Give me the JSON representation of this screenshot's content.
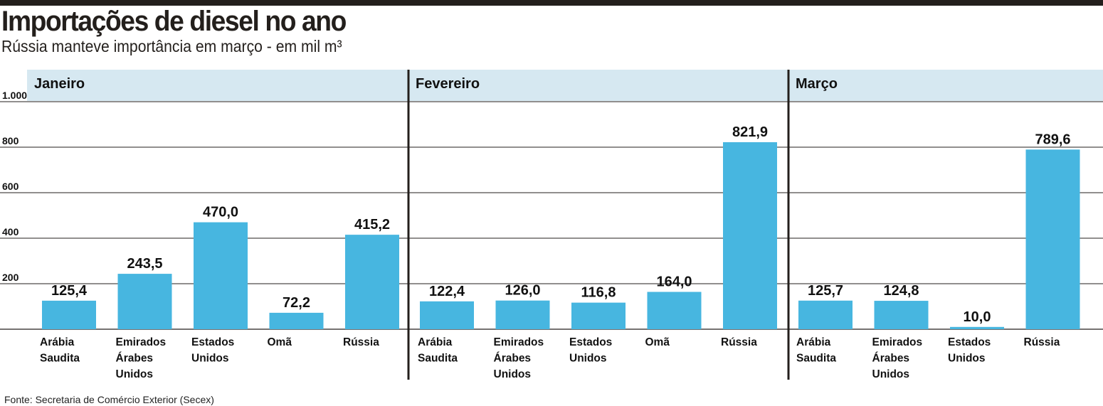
{
  "header": {
    "title": "Importações de diesel no ano",
    "subtitle": "Rússia manteve importância em março - em mil m³"
  },
  "footer": {
    "source": "Fonte: Secretaria de Comércio Exterior (Secex)"
  },
  "colors": {
    "bar": "#47b6e0",
    "panel_header": "#d6e8f1",
    "grid": "#231f1c",
    "topbar": "#231f1c"
  },
  "chart_data": {
    "type": "bar",
    "title": "Importações de diesel no ano",
    "subtitle": "Rússia manteve importância em março - em mil m³",
    "ylim": [
      0,
      1000
    ],
    "yticks": [
      200,
      400,
      600,
      800,
      1000
    ],
    "ytick_labels": [
      "200",
      "400",
      "600",
      "800",
      "1.000"
    ],
    "grid": true,
    "panels": [
      {
        "name": "Janeiro",
        "categories": [
          "Arábia Saudita",
          "Emirados Árabes Unidos",
          "Estados Unidos",
          "Omã",
          "Rússia"
        ],
        "category_lines": [
          [
            "Arábia",
            "Saudita"
          ],
          [
            "Emirados",
            "Árabes",
            "Unidos"
          ],
          [
            "Estados",
            "Unidos"
          ],
          [
            "Omã"
          ],
          [
            "Rússia"
          ]
        ],
        "values": [
          125.4,
          243.5,
          470.0,
          72.2,
          415.2
        ],
        "value_labels": [
          "125,4",
          "243,5",
          "470,0",
          "72,2",
          "415,2"
        ]
      },
      {
        "name": "Fevereiro",
        "categories": [
          "Arábia Saudita",
          "Emirados Árabes Unidos",
          "Estados Unidos",
          "Omã",
          "Rússia"
        ],
        "category_lines": [
          [
            "Arábia",
            "Saudita"
          ],
          [
            "Emirados",
            "Árabes",
            "Unidos"
          ],
          [
            "Estados",
            "Unidos"
          ],
          [
            "Omã"
          ],
          [
            "Rússia"
          ]
        ],
        "values": [
          122.4,
          126.0,
          116.8,
          164.0,
          821.9
        ],
        "value_labels": [
          "122,4",
          "126,0",
          "116,8",
          "164,0",
          "821,9"
        ]
      },
      {
        "name": "Março",
        "categories": [
          "Arábia Saudita",
          "Emirados Árabes Unidos",
          "Estados Unidos",
          "Rússia"
        ],
        "category_lines": [
          [
            "Arábia",
            "Saudita"
          ],
          [
            "Emirados",
            "Árabes",
            "Unidos"
          ],
          [
            "Estados",
            "Unidos"
          ],
          [
            "Rússia"
          ]
        ],
        "values": [
          125.7,
          124.8,
          10.0,
          789.6
        ],
        "value_labels": [
          "125,7",
          "124,8",
          "10,0",
          "789,6"
        ]
      }
    ]
  }
}
